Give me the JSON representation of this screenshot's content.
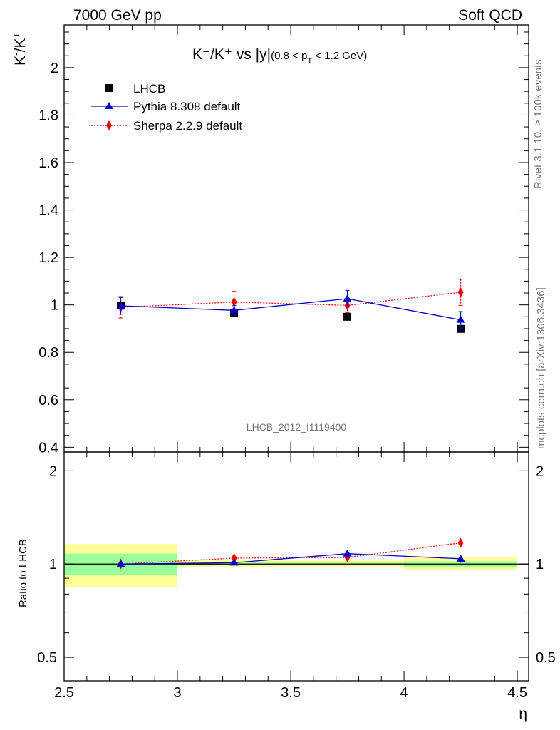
{
  "header": {
    "left": "7000 GeV pp",
    "right": "Soft QCD"
  },
  "side": {
    "rivet": "Rivet 3.1.10, ≥ 100k events",
    "mcplots": "mcplots.cern.ch [arXiv:1306.3436]"
  },
  "watermark": "LHCB_2012_I1119400",
  "chart_data": [
    {
      "type": "scatter",
      "title": "K⁻/K⁺ vs |y|(0.8 < pT < 1.2 GeV)",
      "title_parts": {
        "main": "K⁻/K⁺ vs |y|",
        "sub": "(0.8 < p",
        "sub_T": "T",
        "sub_end": " < 1.2 GeV)"
      },
      "xlabel": "η",
      "ylabel": "K⁻/K⁺",
      "ylabel_parts": {
        "k1": "K",
        "s1": "-",
        "slash": "/K",
        "s2": "+"
      },
      "xlim": [
        2.5,
        4.55
      ],
      "ylim": [
        0.38,
        2.18
      ],
      "x_ticks": [
        "2.5",
        "3",
        "3.5",
        "4",
        "4.5"
      ],
      "y_ticks": [
        "0.4",
        "0.6",
        "0.8",
        "1",
        "1.2",
        "1.4",
        "1.6",
        "1.8",
        "2"
      ],
      "legend_position": "top-left",
      "x": [
        2.75,
        3.25,
        3.75,
        4.25
      ],
      "x_bins": [
        [
          2.5,
          3.0
        ],
        [
          3.0,
          3.5
        ],
        [
          3.5,
          4.0
        ],
        [
          4.0,
          4.5
        ]
      ],
      "series": [
        {
          "name": "LHCB",
          "marker": "square",
          "color": "#000000",
          "values": [
            0.997,
            0.966,
            0.95,
            0.899
          ],
          "err": [
            0.0,
            0.0,
            0.0,
            0.0
          ]
        },
        {
          "name": "Pythia 8.308 default",
          "marker": "triangle",
          "color": "#0000cc",
          "line": "solid",
          "values": [
            0.996,
            0.977,
            1.026,
            0.937
          ],
          "err": [
            0.035,
            0.02,
            0.035,
            0.035
          ]
        },
        {
          "name": "Sherpa 2.2.9 default",
          "marker": "diamond",
          "color": "#ee0000",
          "line": "dotted",
          "values": [
            0.99,
            1.012,
            0.998,
            1.053
          ],
          "err": [
            0.045,
            0.045,
            0.03,
            0.055
          ]
        }
      ]
    },
    {
      "type": "scatter",
      "ylabel": "Ratio to LHCB",
      "xlim": [
        2.5,
        4.55
      ],
      "ylim": [
        0.42,
        2.3
      ],
      "log_y": true,
      "y_ticks": [
        "0.5",
        "1",
        "2"
      ],
      "ref_bands": {
        "inner": {
          "color": "#99ff99",
          "lo": [
            0.92,
            0.99,
            0.99,
            0.98
          ],
          "hi": [
            1.08,
            1.01,
            1.01,
            1.02
          ]
        },
        "outer": {
          "color": "#ffff99",
          "lo": [
            0.84,
            0.98,
            0.98,
            0.96
          ],
          "hi": [
            1.16,
            1.03,
            1.03,
            1.05
          ]
        }
      },
      "series": [
        {
          "name": "Pythia 8.308 default",
          "values": [
            1.0,
            1.01,
            1.08,
            1.04
          ],
          "err": [
            0.03,
            0.015,
            0.03,
            0.03
          ]
        },
        {
          "name": "Sherpa 2.2.9 default",
          "values": [
            1.0,
            1.045,
            1.05,
            1.17
          ],
          "err": [
            0.04,
            0.035,
            0.03,
            0.05
          ]
        }
      ]
    }
  ]
}
